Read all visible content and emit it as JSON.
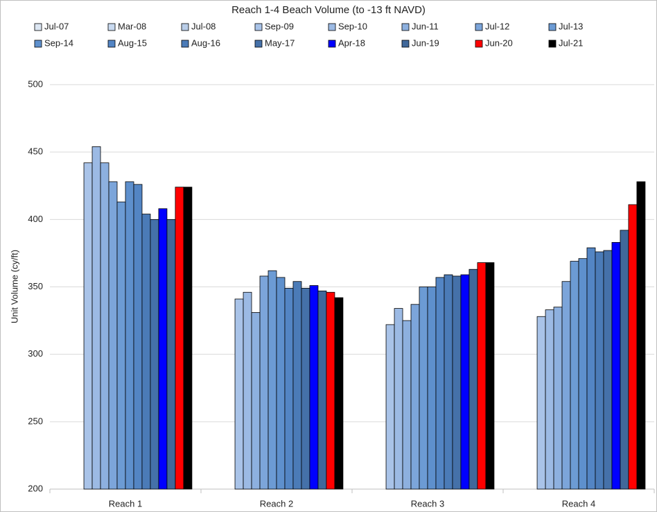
{
  "chart_data": {
    "type": "bar",
    "title": "Reach 1-4 Beach Volume (to -13 ft NAVD)",
    "y_label": "Unit Volume (cy/ft)",
    "categories": [
      "Reach 1",
      "Reach 2",
      "Reach 3",
      "Reach 4"
    ],
    "ylim": [
      200,
      500
    ],
    "yticks": [
      200,
      250,
      300,
      350,
      400,
      450,
      500
    ],
    "grid": true,
    "legend": "top",
    "series": [
      {
        "name": "Jul-07",
        "color": "#dce6f2",
        "values": [
          200,
          200,
          200,
          200
        ]
      },
      {
        "name": "Mar-08",
        "color": "#c9daf0",
        "values": [
          200,
          200,
          200,
          200
        ]
      },
      {
        "name": "Jul-08",
        "color": "#b9cde8",
        "values": [
          200,
          200,
          200,
          200
        ]
      },
      {
        "name": "Sep-09",
        "color": "#a9c3e8",
        "values": [
          442,
          341,
          322,
          328
        ]
      },
      {
        "name": "Sep-10",
        "color": "#9cbae4",
        "values": [
          454,
          346,
          334,
          333
        ]
      },
      {
        "name": "Jun-11",
        "color": "#8db0df",
        "values": [
          442,
          331,
          325,
          335
        ]
      },
      {
        "name": "Jul-12",
        "color": "#7ca5da",
        "values": [
          428,
          358,
          337,
          354
        ]
      },
      {
        "name": "Jul-13",
        "color": "#6c9bd4",
        "values": [
          413,
          362,
          350,
          369
        ]
      },
      {
        "name": "Sep-14",
        "color": "#5e90cd",
        "values": [
          428,
          357,
          350,
          371
        ]
      },
      {
        "name": "Aug-15",
        "color": "#5385c4",
        "values": [
          426,
          349,
          357,
          379
        ]
      },
      {
        "name": "Aug-16",
        "color": "#4b7bb7",
        "values": [
          404,
          354,
          359,
          376
        ]
      },
      {
        "name": "May-17",
        "color": "#4571a9",
        "values": [
          400,
          349,
          358,
          377
        ]
      },
      {
        "name": "Apr-18",
        "color": "#0000ff",
        "values": [
          408,
          351,
          359,
          383
        ]
      },
      {
        "name": "Jun-19",
        "color": "#40689a",
        "values": [
          400,
          347,
          363,
          392
        ]
      },
      {
        "name": "Jun-20",
        "color": "#ff0000",
        "values": [
          424,
          346,
          368,
          411
        ]
      },
      {
        "name": "Jul-21",
        "color": "#000000",
        "values": [
          424,
          342,
          368,
          428
        ]
      }
    ]
  }
}
